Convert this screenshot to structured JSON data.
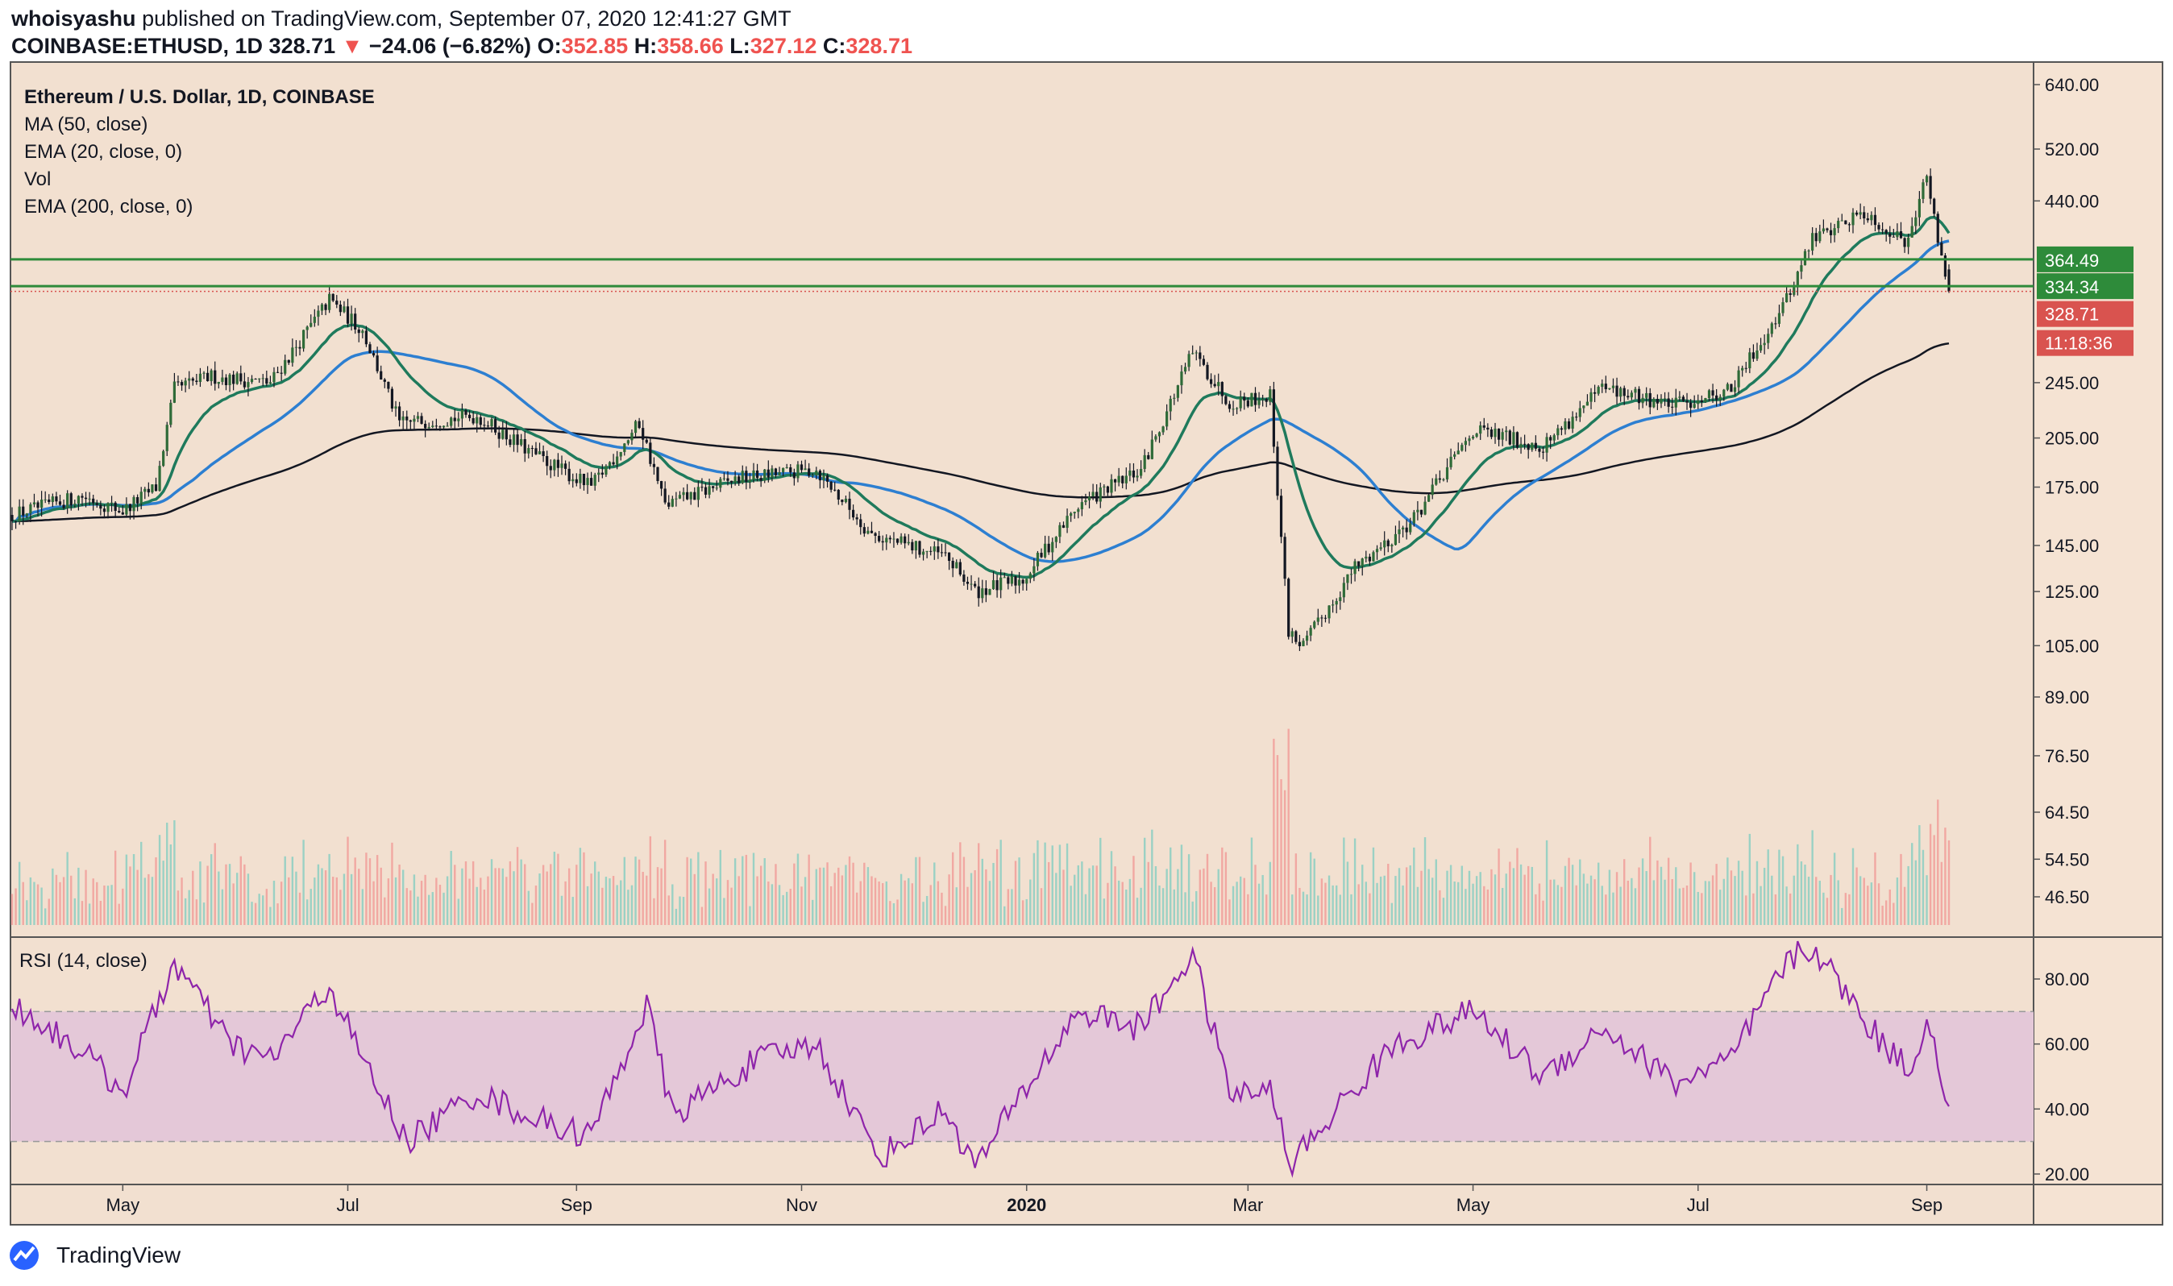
{
  "header": {
    "author": "whoisyashu",
    "published_text": "published on TradingView.com, September 07, 2020 12:41:27 GMT",
    "symbol": "COINBASE:ETHUSD, 1D",
    "last": "328.71",
    "change_arrow": "▼",
    "change": "−24.06 (−6.82%)",
    "o_label": "O:",
    "o_value": "352.85",
    "h_label": "H:",
    "h_value": "358.66",
    "l_label": "L:",
    "l_value": "327.12",
    "c_label": "C:",
    "c_value": "328.71"
  },
  "legend": {
    "title": "Ethereum / U.S. Dollar, 1D, COINBASE",
    "ma50": "MA (50, close)",
    "ema20": "EMA (20, close, 0)",
    "vol": "Vol",
    "ema200": "EMA (200, close, 0)"
  },
  "rsi_legend": "RSI (14, close)",
  "footer": {
    "brand": "TradingView"
  },
  "colors": {
    "panel_bg": "#f2e0d0",
    "up": "#26a69a",
    "down": "#ef5350",
    "candle_body": "#131722",
    "ema20": "#1f7a5c",
    "ma50": "#2d7fd1",
    "ema200": "#131722",
    "resistance": "#2e8b3a",
    "rsi_line": "#8e24aa",
    "rsi_band": "#e4c8d8",
    "price_tag": "#d9534f",
    "level_tag": "#2e8b3a"
  },
  "chart_data": {
    "type": "candlestick",
    "title": "Ethereum / U.S. Dollar, 1D, COINBASE",
    "y_scale": "log",
    "y_ticks": [
      "640.00",
      "520.00",
      "440.00",
      "245.00",
      "205.00",
      "175.00",
      "145.00",
      "125.00",
      "105.00",
      "89.00",
      "76.50",
      "64.50",
      "54.50",
      "46.50"
    ],
    "x_ticks": [
      "May",
      "Jul",
      "Sep",
      "Nov",
      "2020",
      "Mar",
      "May",
      "Jul",
      "Sep"
    ],
    "horizontal_levels": [
      {
        "label": "364.49",
        "value": 364.49
      },
      {
        "label": "334.34",
        "value": 334.34
      }
    ],
    "last_price": {
      "label": "328.71",
      "value": 328.71
    },
    "countdown": "11:18:36",
    "price_path": [
      {
        "x": "2019-04-01",
        "y": 160
      },
      {
        "x": "2019-04-20",
        "y": 170
      },
      {
        "x": "2019-05-01",
        "y": 162
      },
      {
        "x": "2019-05-10",
        "y": 175
      },
      {
        "x": "2019-05-15",
        "y": 240
      },
      {
        "x": "2019-05-25",
        "y": 250
      },
      {
        "x": "2019-06-10",
        "y": 245
      },
      {
        "x": "2019-06-26",
        "y": 320
      },
      {
        "x": "2019-07-05",
        "y": 290
      },
      {
        "x": "2019-07-15",
        "y": 215
      },
      {
        "x": "2019-08-05",
        "y": 220
      },
      {
        "x": "2019-08-20",
        "y": 195
      },
      {
        "x": "2019-09-05",
        "y": 175
      },
      {
        "x": "2019-09-18",
        "y": 215
      },
      {
        "x": "2019-09-25",
        "y": 165
      },
      {
        "x": "2019-10-15",
        "y": 180
      },
      {
        "x": "2019-11-05",
        "y": 185
      },
      {
        "x": "2019-11-20",
        "y": 150
      },
      {
        "x": "2019-12-10",
        "y": 140
      },
      {
        "x": "2019-12-18",
        "y": 125
      },
      {
        "x": "2019-12-31",
        "y": 130
      },
      {
        "x": "2020-01-15",
        "y": 165
      },
      {
        "x": "2020-02-01",
        "y": 185
      },
      {
        "x": "2020-02-15",
        "y": 270
      },
      {
        "x": "2020-02-25",
        "y": 230
      },
      {
        "x": "2020-03-07",
        "y": 235
      },
      {
        "x": "2020-03-12",
        "y": 110
      },
      {
        "x": "2020-03-16",
        "y": 105
      },
      {
        "x": "2020-03-30",
        "y": 135
      },
      {
        "x": "2020-04-15",
        "y": 158
      },
      {
        "x": "2020-05-01",
        "y": 210
      },
      {
        "x": "2020-05-20",
        "y": 200
      },
      {
        "x": "2020-06-05",
        "y": 240
      },
      {
        "x": "2020-06-25",
        "y": 228
      },
      {
        "x": "2020-07-10",
        "y": 240
      },
      {
        "x": "2020-07-25",
        "y": 320
      },
      {
        "x": "2020-08-01",
        "y": 390
      },
      {
        "x": "2020-08-15",
        "y": 425
      },
      {
        "x": "2020-08-26",
        "y": 385
      },
      {
        "x": "2020-09-01",
        "y": 475
      },
      {
        "x": "2020-09-04",
        "y": 390
      },
      {
        "x": "2020-09-07",
        "y": 329
      }
    ],
    "rsi": {
      "y_ticks": [
        "80.00",
        "60.00",
        "40.00",
        "20.00"
      ],
      "band": [
        30,
        70
      ],
      "path": [
        {
          "x": "2019-04-01",
          "y": 72
        },
        {
          "x": "2019-04-20",
          "y": 58
        },
        {
          "x": "2019-05-01",
          "y": 45
        },
        {
          "x": "2019-05-15",
          "y": 85
        },
        {
          "x": "2019-05-30",
          "y": 60
        },
        {
          "x": "2019-06-10",
          "y": 55
        },
        {
          "x": "2019-06-26",
          "y": 78
        },
        {
          "x": "2019-07-05",
          "y": 55
        },
        {
          "x": "2019-07-17",
          "y": 30
        },
        {
          "x": "2019-08-05",
          "y": 45
        },
        {
          "x": "2019-08-25",
          "y": 35
        },
        {
          "x": "2019-09-05",
          "y": 32
        },
        {
          "x": "2019-09-20",
          "y": 72
        },
        {
          "x": "2019-09-27",
          "y": 38
        },
        {
          "x": "2019-10-20",
          "y": 55
        },
        {
          "x": "2019-11-05",
          "y": 60
        },
        {
          "x": "2019-11-22",
          "y": 25
        },
        {
          "x": "2019-12-10",
          "y": 40
        },
        {
          "x": "2019-12-18",
          "y": 22
        },
        {
          "x": "2019-12-31",
          "y": 45
        },
        {
          "x": "2020-01-15",
          "y": 70
        },
        {
          "x": "2020-02-01",
          "y": 65
        },
        {
          "x": "2020-02-15",
          "y": 88
        },
        {
          "x": "2020-02-25",
          "y": 45
        },
        {
          "x": "2020-03-08",
          "y": 45
        },
        {
          "x": "2020-03-12",
          "y": 22
        },
        {
          "x": "2020-03-25",
          "y": 40
        },
        {
          "x": "2020-04-10",
          "y": 60
        },
        {
          "x": "2020-05-01",
          "y": 70
        },
        {
          "x": "2020-05-20",
          "y": 50
        },
        {
          "x": "2020-06-05",
          "y": 65
        },
        {
          "x": "2020-06-25",
          "y": 48
        },
        {
          "x": "2020-07-10",
          "y": 55
        },
        {
          "x": "2020-07-25",
          "y": 85
        },
        {
          "x": "2020-08-01",
          "y": 90
        },
        {
          "x": "2020-08-20",
          "y": 60
        },
        {
          "x": "2020-08-28",
          "y": 52
        },
        {
          "x": "2020-09-01",
          "y": 70
        },
        {
          "x": "2020-09-07",
          "y": 38
        }
      ]
    }
  }
}
